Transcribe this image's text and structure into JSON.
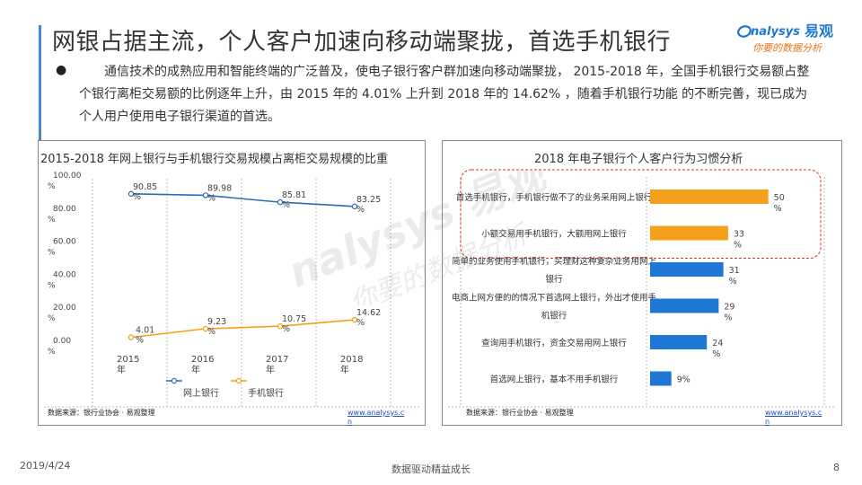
{
  "slide": {
    "title": "网银占据主流，个人客户加速向移动端聚拢，首选手机银行",
    "bullet_symbol": "●",
    "paragraph": "通信技术的成熟应用和智能终端的广泛普及，使电子银行客户群加速向移动端聚拢， 2015-2018 年，全国手机银行交易额占整个银行离柜交易额的比例逐年上升，由 2015 年的 4.01% 上升到 2018 年的 14.62% ，随着手机银行功能 的不断完善，现已成为个人用户使用电子银行渠道的首选。",
    "logo": {
      "latin": "nalysys",
      "cn": "易观",
      "slogan": "你要的数据分析"
    },
    "watermark": {
      "latin": "nalysys 易观",
      "cn": "你要的数据分析"
    },
    "accent_color": "#4a86c8",
    "orange_color": "#f5a01a",
    "blue_bar_color": "#1f77d4"
  },
  "chart_data": [
    {
      "type": "line",
      "title": "2015-2018 年网上银行与手机银行交易规模占离柜交易规模的比重",
      "categories": [
        "2015年",
        "2016年",
        "2017年",
        "2018年"
      ],
      "y_ticks": [
        "100.00%",
        "80.00%",
        "60.00%",
        "40.00%",
        "20.00%",
        "0.00%"
      ],
      "ylim": [
        0,
        100
      ],
      "series": [
        {
          "name": "网上银行",
          "color": "#2a6db5",
          "values": [
            90.85,
            89.98,
            85.81,
            83.25
          ],
          "labels": [
            "90.85%",
            "89.98%",
            "85.81%",
            "83.25%"
          ]
        },
        {
          "name": "手机银行",
          "color": "#f5a01a",
          "values": [
            4.01,
            9.23,
            10.75,
            14.62
          ],
          "labels": [
            "4.01%",
            "9.23%",
            "10.75%",
            "14.62%"
          ]
        }
      ],
      "legend": "bottom",
      "source": "数据来源：银行业协会 · 易观整理",
      "source_link": "www.analysys.cn"
    },
    {
      "type": "bar",
      "orientation": "horizontal",
      "title": "2018 年电子银行个人客户行为习惯分析",
      "categories": [
        "首选手机银行，手机银行做不了的业务采用网上银行",
        "小额交易用手机银行，大额用网上银行",
        "简单的业务使用手机银行，买理财这种复杂业务用网上银行",
        "电商上网方便的的情况下首选网上银行，外出才使用手机银行",
        "查询用手机银行，资金交易用网上银行",
        "首选网上银行，基本不用手机银行"
      ],
      "values": [
        50,
        33,
        31,
        29,
        24,
        9
      ],
      "labels": [
        "50%",
        "33%",
        "31%",
        "29%",
        "24%",
        "9%"
      ],
      "colors": [
        "#f5a01a",
        "#f5a01a",
        "#1f77d4",
        "#1f77d4",
        "#1f77d4",
        "#1f77d4"
      ],
      "highlighted_rows": [
        0,
        1
      ],
      "xlim": [
        0,
        60
      ],
      "source": "数据来源：银行业协会 · 易观整理",
      "source_link": "www.analysys.cn"
    }
  ],
  "footer": {
    "date": "2019/4/24",
    "center": "数据驱动精益成长",
    "page": "8"
  }
}
